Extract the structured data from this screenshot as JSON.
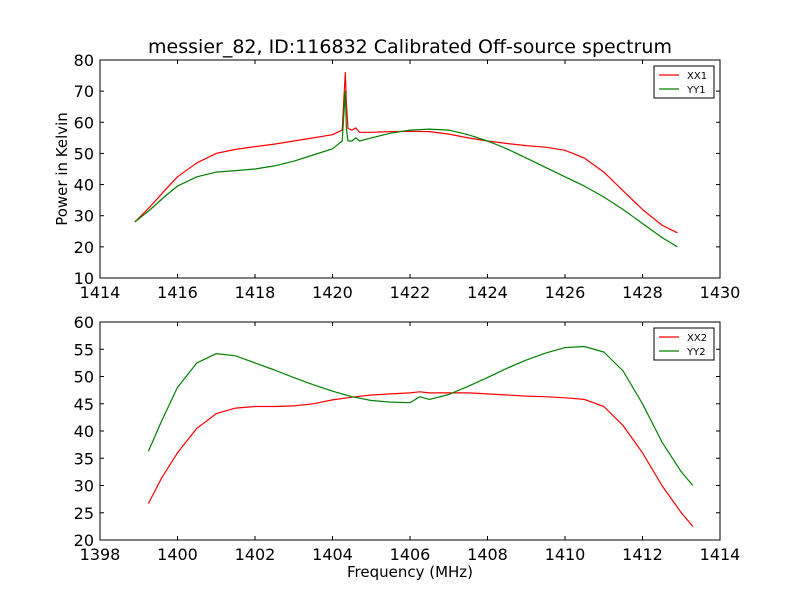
{
  "chart_data": [
    {
      "type": "line",
      "title": "messier_82, ID:116832 Calibrated Off-source spectrum",
      "xlabel": "",
      "ylabel": "Power in Kelvin",
      "xlim": [
        1414,
        1430
      ],
      "ylim": [
        10,
        80
      ],
      "xticks": [
        1414,
        1416,
        1418,
        1420,
        1422,
        1424,
        1426,
        1428,
        1430
      ],
      "yticks": [
        10,
        20,
        30,
        40,
        50,
        60,
        70,
        80
      ],
      "legend_position": "top-right",
      "grid": false,
      "series": [
        {
          "name": "XX1",
          "color": "#ff0000",
          "x": [
            1414.9,
            1415.3,
            1415.7,
            1416.0,
            1416.5,
            1417.0,
            1417.5,
            1418.0,
            1418.5,
            1419.0,
            1419.5,
            1420.0,
            1420.25,
            1420.33,
            1420.36,
            1420.4,
            1420.5,
            1420.6,
            1420.7,
            1421.0,
            1421.5,
            1422.0,
            1422.5,
            1423.0,
            1423.5,
            1424.0,
            1424.5,
            1425.0,
            1425.5,
            1426.0,
            1426.5,
            1427.0,
            1427.5,
            1428.0,
            1428.5,
            1428.9
          ],
          "y": [
            28,
            33,
            38.5,
            42.5,
            47,
            50,
            51.3,
            52.2,
            53,
            54,
            55,
            56,
            57.5,
            76,
            66,
            58,
            57.5,
            58.2,
            56.8,
            56.8,
            57,
            57.1,
            57,
            56.2,
            55,
            54,
            53.2,
            52.5,
            52,
            51,
            48.5,
            44,
            38,
            32,
            27,
            24.5
          ]
        },
        {
          "name": "YY1",
          "color": "#008000",
          "x": [
            1414.9,
            1415.3,
            1415.7,
            1416.0,
            1416.5,
            1417.0,
            1417.5,
            1418.0,
            1418.5,
            1419.0,
            1419.5,
            1420.0,
            1420.25,
            1420.33,
            1420.36,
            1420.4,
            1420.5,
            1420.6,
            1420.7,
            1421.0,
            1421.5,
            1422.0,
            1422.5,
            1423.0,
            1423.5,
            1424.0,
            1424.5,
            1425.0,
            1425.5,
            1426.0,
            1426.5,
            1427.0,
            1427.5,
            1428.0,
            1428.5,
            1428.9
          ],
          "y": [
            28,
            32,
            36.5,
            39.5,
            42.5,
            44,
            44.5,
            45,
            46,
            47.5,
            49.5,
            51.5,
            54,
            70,
            58,
            54,
            54,
            55,
            54,
            55,
            56.5,
            57.5,
            57.8,
            57.5,
            56,
            54,
            51.5,
            48.5,
            45.5,
            42.5,
            39.5,
            36,
            32,
            27.5,
            23,
            20
          ]
        }
      ]
    },
    {
      "type": "line",
      "title": "",
      "xlabel": "Frequency (MHz)",
      "ylabel": "",
      "xlim": [
        1398,
        1414
      ],
      "ylim": [
        20,
        60
      ],
      "xticks": [
        1398,
        1400,
        1402,
        1404,
        1406,
        1408,
        1410,
        1412,
        1414
      ],
      "yticks": [
        20,
        25,
        30,
        35,
        40,
        45,
        50,
        55,
        60
      ],
      "legend_position": "top-right",
      "grid": false,
      "series": [
        {
          "name": "XX2",
          "color": "#ff0000",
          "x": [
            1399.25,
            1399.6,
            1400.0,
            1400.5,
            1401.0,
            1401.5,
            1402.0,
            1402.5,
            1403.0,
            1403.5,
            1404.0,
            1404.5,
            1405.0,
            1405.5,
            1406.0,
            1406.25,
            1406.5,
            1407.0,
            1407.5,
            1408.0,
            1408.5,
            1409.0,
            1409.5,
            1410.0,
            1410.5,
            1411.0,
            1411.5,
            1412.0,
            1412.5,
            1413.0,
            1413.3
          ],
          "y": [
            26.7,
            31.5,
            36,
            40.5,
            43.2,
            44.2,
            44.5,
            44.5,
            44.6,
            45,
            45.7,
            46.2,
            46.6,
            46.8,
            47,
            47.2,
            47,
            47,
            47,
            46.8,
            46.6,
            46.4,
            46.3,
            46.1,
            45.8,
            44.5,
            41,
            36,
            30,
            25,
            22.5
          ]
        },
        {
          "name": "YY2",
          "color": "#008000",
          "x": [
            1399.25,
            1399.6,
            1400.0,
            1400.5,
            1401.0,
            1401.5,
            1402.0,
            1402.5,
            1403.0,
            1403.5,
            1404.0,
            1404.5,
            1405.0,
            1405.5,
            1406.0,
            1406.25,
            1406.5,
            1407.0,
            1407.5,
            1408.0,
            1408.5,
            1409.0,
            1409.5,
            1410.0,
            1410.5,
            1411.0,
            1411.5,
            1412.0,
            1412.5,
            1413.0,
            1413.3
          ],
          "y": [
            36.3,
            42,
            48,
            52.5,
            54.2,
            53.8,
            52.5,
            51.2,
            49.8,
            48.5,
            47.3,
            46.3,
            45.6,
            45.3,
            45.2,
            46.3,
            45.8,
            46.7,
            48.2,
            49.8,
            51.5,
            53,
            54.3,
            55.3,
            55.5,
            54.5,
            51,
            45,
            38,
            32.5,
            30
          ]
        }
      ]
    }
  ]
}
